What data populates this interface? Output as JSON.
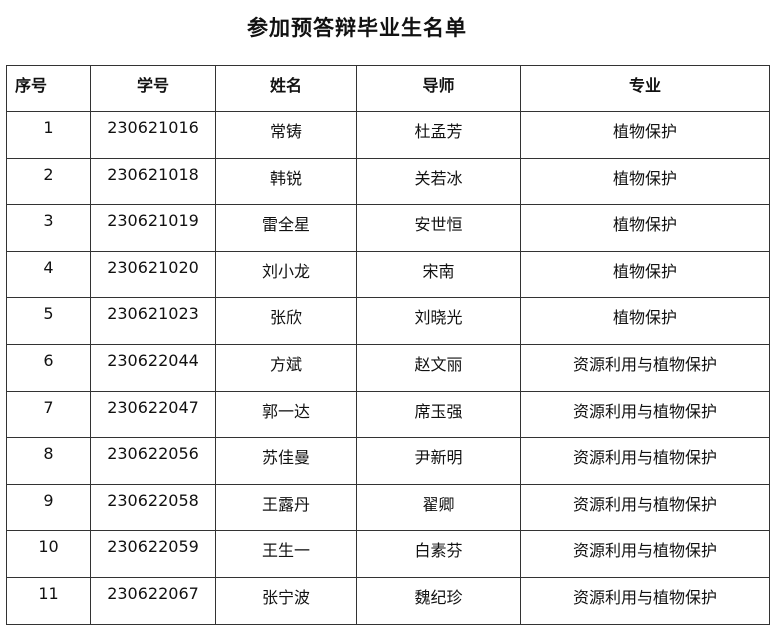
{
  "title": "参加预答辩毕业生名单",
  "headers": [
    "序号",
    "学号",
    "姓名",
    "导师",
    "专业"
  ],
  "rows": [
    [
      "1",
      "230621016",
      "常铸",
      "杜孟芳",
      "植物保护"
    ],
    [
      "2",
      "230621018",
      "韩锐",
      "关若冰",
      "植物保护"
    ],
    [
      "3",
      "230621019",
      "雷全星",
      "安世恒",
      "植物保护"
    ],
    [
      "4",
      "230621020",
      "刘小龙",
      "宋南",
      "植物保护"
    ],
    [
      "5",
      "230621023",
      "张欣",
      "刘晓光",
      "植物保护"
    ],
    [
      "6",
      "230622044",
      "方斌",
      "赵文丽",
      "资源利用与植物保护"
    ],
    [
      "7",
      "230622047",
      "郭一达",
      "席玉强",
      "资源利用与植物保护"
    ],
    [
      "8",
      "230622056",
      "苏佳曼",
      "尹新明",
      "资源利用与植物保护"
    ],
    [
      "9",
      "230622058",
      "王露丹",
      "翟卿",
      "资源利用与植物保护"
    ],
    [
      "10",
      "230622059",
      "王生一",
      "白素芬",
      "资源利用与植物保护"
    ],
    [
      "11",
      "230622067",
      "张宁波",
      "魏纪珍",
      "资源利用与植物保护"
    ]
  ]
}
